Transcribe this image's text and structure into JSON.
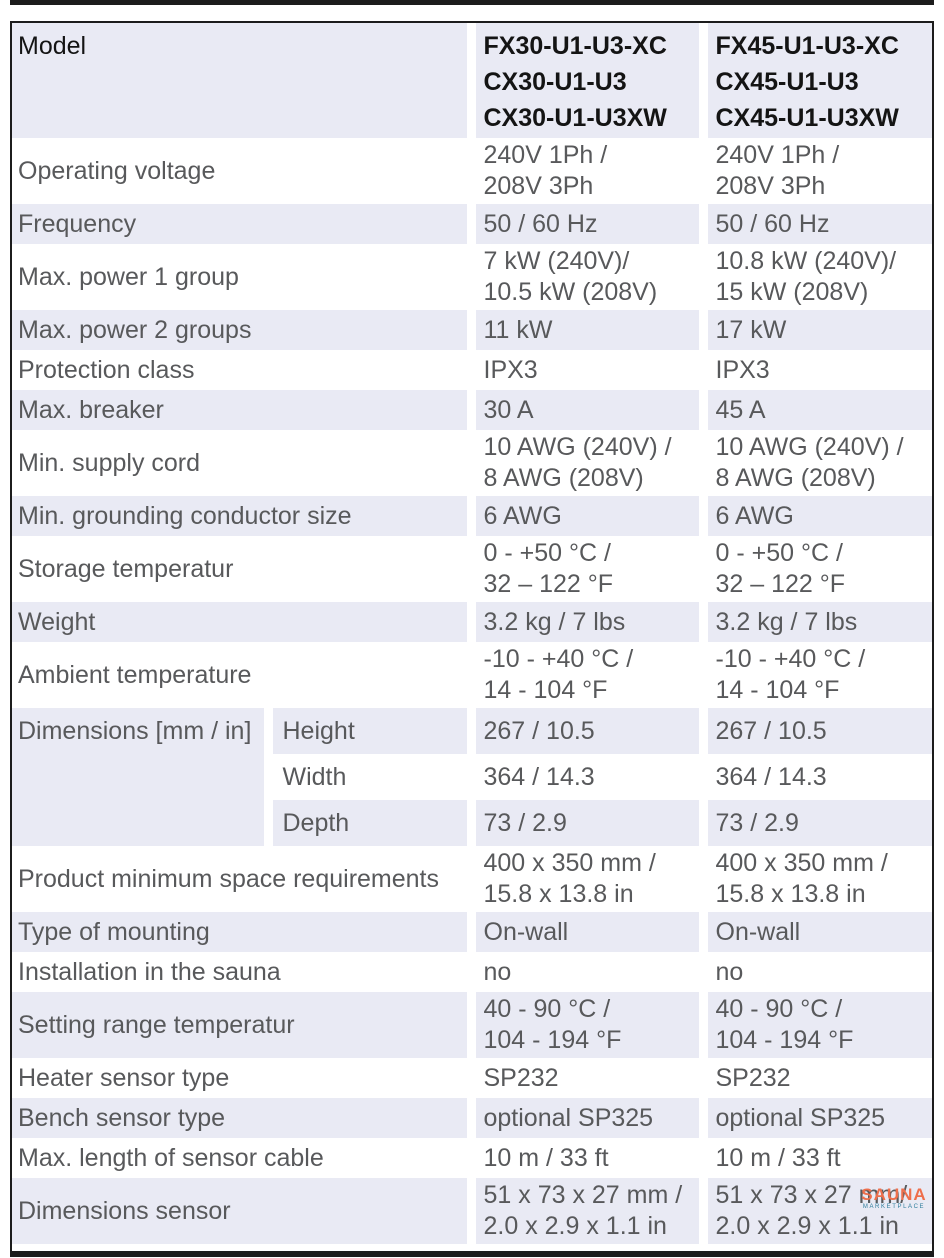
{
  "colors": {
    "row_shade": "#e9eaf4",
    "text": "#58595b",
    "header_text": "#141414",
    "border": "#1c1c1c",
    "watermark_primary": "#ee6f4c",
    "watermark_secondary": "#2e7d9c"
  },
  "table": {
    "header": {
      "label": "Model",
      "col1": "FX30-U1-U3-XC\nCX30-U1-U3\nCX30-U1-U3XW",
      "col2": "FX45-U1-U3-XC\nCX45-U1-U3\nCX45-U1-U3XW"
    },
    "rows": [
      {
        "label": "Operating voltage",
        "col1": "240V 1Ph /\n208V 3Ph",
        "col2": "240V 1Ph /\n208V 3Ph"
      },
      {
        "label": "Frequency",
        "col1": "50 / 60 Hz",
        "col2": "50 / 60 Hz"
      },
      {
        "label": "Max. power 1 group",
        "col1": "7 kW (240V)/\n10.5 kW (208V)",
        "col2": "10.8 kW (240V)/\n15 kW (208V)"
      },
      {
        "label": "Max. power 2 groups",
        "col1": "11 kW",
        "col2": "17 kW"
      },
      {
        "label": "Protection class",
        "col1": "IPX3",
        "col2": "IPX3"
      },
      {
        "label": "Max. breaker",
        "col1": "30 A",
        "col2": "45 A"
      },
      {
        "label": "Min. supply cord",
        "col1": "10 AWG (240V) /\n8 AWG (208V)",
        "col2": "10 AWG (240V) /\n8 AWG (208V)"
      },
      {
        "label": "Min. grounding conductor size",
        "col1": "6 AWG",
        "col2": "6 AWG"
      },
      {
        "label": "Storage temperatur",
        "col1": "0 - +50 °C /\n32 – 122 °F",
        "col2": "0 - +50 °C /\n32 – 122 °F"
      },
      {
        "label": "Weight",
        "col1": "3.2 kg / 7 lbs",
        "col2": "3.2 kg / 7 lbs"
      },
      {
        "label": "Ambient temperature",
        "col1": "-10 - +40 °C /\n14 - 104 °F",
        "col2": "-10 - +40 °C /\n14 - 104 °F"
      },
      {
        "label": "Product minimum space requirements",
        "col1": "400 x 350 mm /\n15.8 x 13.8 in",
        "col2": "400 x 350 mm /\n15.8 x 13.8 in"
      },
      {
        "label": "Type of mounting",
        "col1": "On-wall",
        "col2": "On-wall"
      },
      {
        "label": "Installation in the sauna",
        "col1": "no",
        "col2": "no"
      },
      {
        "label": "Setting range temperatur",
        "col1": "40 - 90 °C /\n104 - 194 °F",
        "col2": "40 - 90 °C /\n104 - 194 °F"
      },
      {
        "label": "Heater sensor type",
        "col1": "SP232",
        "col2": "SP232"
      },
      {
        "label": "Bench sensor type",
        "col1": "optional SP325",
        "col2": "optional SP325"
      },
      {
        "label": "Max. length of sensor cable",
        "col1": "10 m / 33 ft",
        "col2": "10 m / 33 ft"
      },
      {
        "label": "Dimensions sensor",
        "col1": "51 x 73 x 27 mm /\n2.0 x 2.9 x 1.1 in",
        "col2": "51 x 73 x 27 mm/\n2.0 x 2.9 x 1.1 in"
      }
    ],
    "dimensions": {
      "label": "Dimensions [mm / in]",
      "rows": [
        {
          "sub": "Height",
          "col1": "267 / 10.5",
          "col2": "267 / 10.5"
        },
        {
          "sub": "Width",
          "col1": "364 / 14.3",
          "col2": "364 / 14.3"
        },
        {
          "sub": "Depth",
          "col1": "73 / 2.9",
          "col2": "73 / 2.9"
        }
      ]
    }
  },
  "watermark": {
    "title": "SAUNA",
    "subtitle": "MARKETPLACE"
  }
}
